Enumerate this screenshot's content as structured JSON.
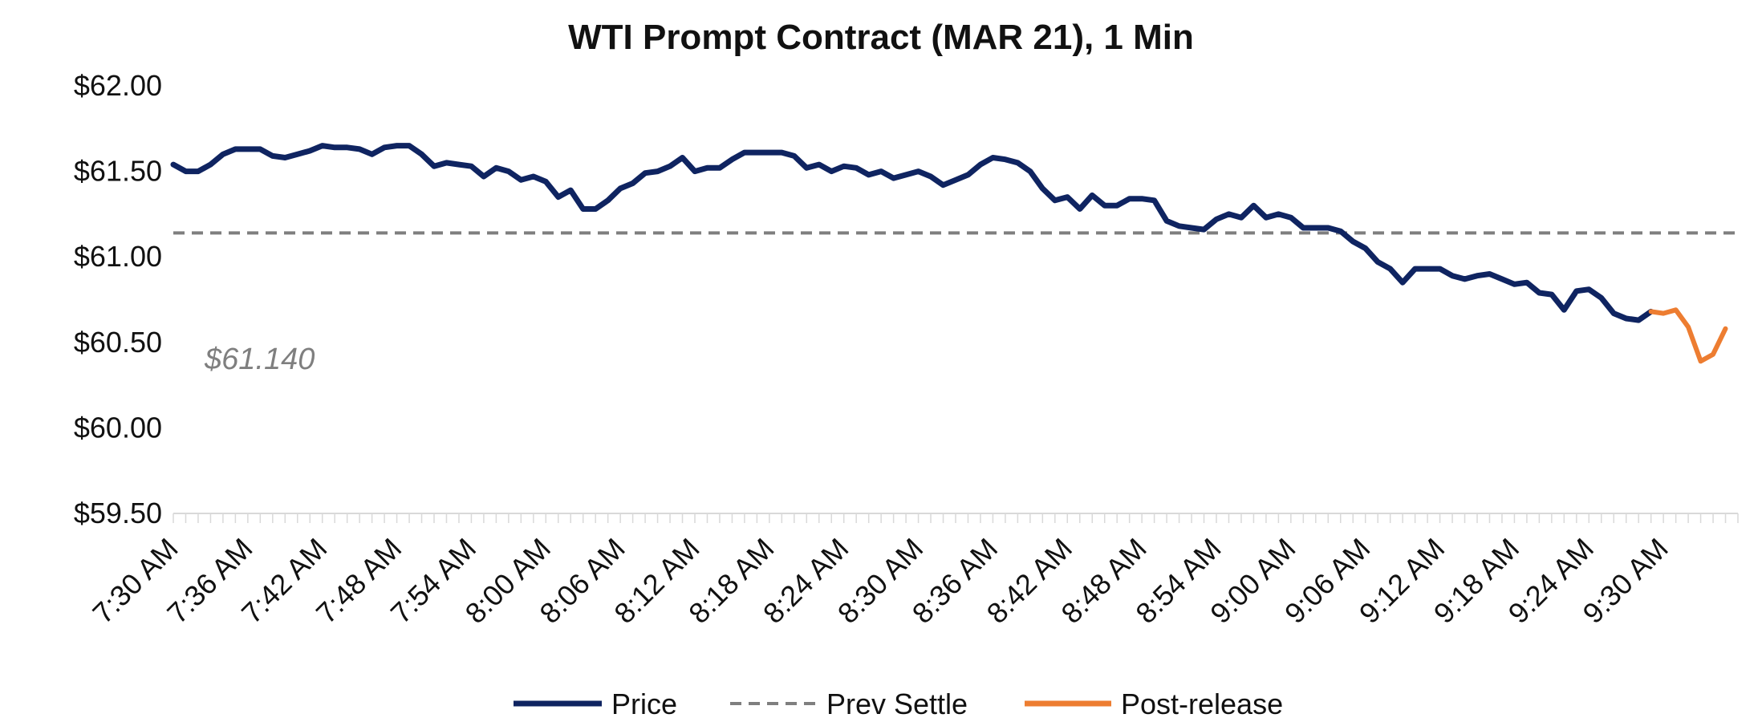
{
  "colors": {
    "price": "#0f2461",
    "prev_settle": "#7f7f7f",
    "post_release": "#ed7d31",
    "axis": "#d9d9d9",
    "text": "#111111"
  },
  "chart_data": {
    "type": "line",
    "title": "WTI Prompt Contract (MAR 21), 1 Min",
    "xlabel": "",
    "ylabel": "",
    "ylim": [
      59.5,
      62.0
    ],
    "yticks": [
      59.5,
      60.0,
      60.5,
      61.0,
      61.5,
      62.0
    ],
    "ytick_labels": [
      "$59.50",
      "$60.00",
      "$60.50",
      "$61.00",
      "$61.50",
      "$62.00"
    ],
    "x_minutes_total": 126,
    "xtick_minutes": [
      0,
      6,
      12,
      18,
      24,
      30,
      36,
      42,
      48,
      54,
      60,
      66,
      72,
      78,
      84,
      90,
      96,
      102,
      108,
      114,
      120
    ],
    "xtick_labels": [
      "7:30 AM",
      "7:36 AM",
      "7:42 AM",
      "7:48 AM",
      "7:54 AM",
      "8:00 AM",
      "8:06 AM",
      "8:12 AM",
      "8:18 AM",
      "8:24 AM",
      "8:30 AM",
      "8:36 AM",
      "8:42 AM",
      "8:48 AM",
      "8:54 AM",
      "9:00 AM",
      "9:06 AM",
      "9:12 AM",
      "9:18 AM",
      "9:24 AM",
      "9:30 AM"
    ],
    "prev_settle_value": 61.14,
    "annotation": "$61.140",
    "series": [
      {
        "name": "Price",
        "start_minute": 0,
        "values": [
          61.54,
          61.5,
          61.5,
          61.54,
          61.6,
          61.63,
          61.63,
          61.63,
          61.59,
          61.58,
          61.6,
          61.62,
          61.65,
          61.64,
          61.64,
          61.63,
          61.6,
          61.64,
          61.65,
          61.65,
          61.6,
          61.53,
          61.55,
          61.54,
          61.53,
          61.47,
          61.52,
          61.5,
          61.45,
          61.47,
          61.44,
          61.35,
          61.39,
          61.28,
          61.28,
          61.33,
          61.4,
          61.43,
          61.49,
          61.5,
          61.53,
          61.58,
          61.5,
          61.52,
          61.52,
          61.57,
          61.61,
          61.61,
          61.61,
          61.61,
          61.59,
          61.52,
          61.54,
          61.5,
          61.53,
          61.52,
          61.48,
          61.5,
          61.46,
          61.48,
          61.5,
          61.47,
          61.42,
          61.45,
          61.48,
          61.54,
          61.58,
          61.57,
          61.55,
          61.5,
          61.4,
          61.33,
          61.35,
          61.28,
          61.36,
          61.3,
          61.3,
          61.34,
          61.34,
          61.33,
          61.21,
          61.18,
          61.17,
          61.16,
          61.22,
          61.25,
          61.23,
          61.3,
          61.23,
          61.25,
          61.23,
          61.17,
          61.17,
          61.17,
          61.15,
          61.09,
          61.05,
          60.97,
          60.93,
          60.85,
          60.93,
          60.93,
          60.93,
          60.89,
          60.87,
          60.89,
          60.9,
          60.87,
          60.84,
          60.85,
          60.79,
          60.78,
          60.69,
          60.8,
          60.81,
          60.76,
          60.67,
          60.64,
          60.63,
          60.68
        ]
      },
      {
        "name": "Post-release",
        "start_minute": 119,
        "values": [
          60.68,
          60.67,
          60.69,
          60.59,
          60.39,
          60.43,
          60.58
        ]
      },
      {
        "name": "Prev Settle",
        "style": "dashed"
      }
    ],
    "legend": {
      "placement": "bottom-center",
      "entries": [
        "Price",
        "Prev Settle",
        "Post-release"
      ]
    },
    "grid": false
  }
}
